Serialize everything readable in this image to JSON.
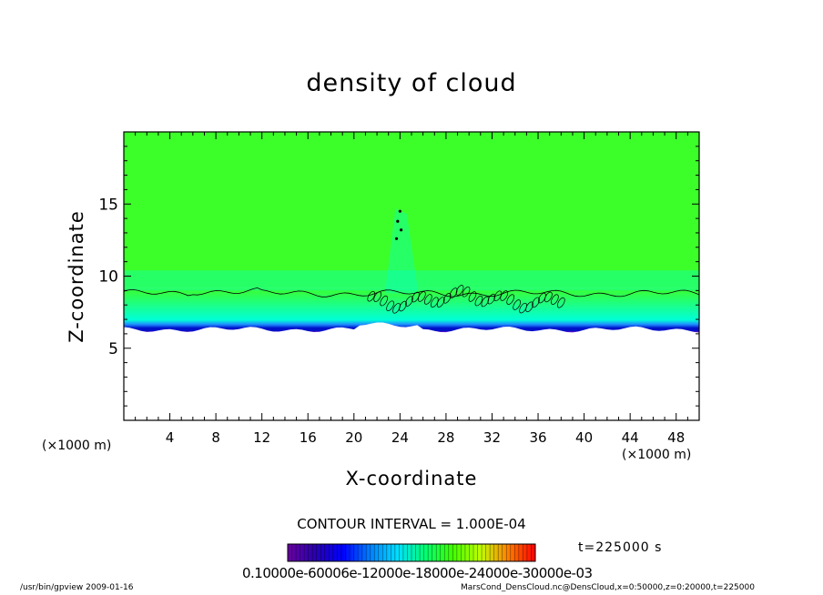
{
  "chart_data": {
    "type": "heatmap",
    "title": "density of cloud",
    "xlabel": "X-coordinate",
    "ylabel": "Z-coordinate",
    "x_unit": "(×1000 m)",
    "z_unit": "(×1000 m)",
    "xlim": [
      0,
      50
    ],
    "ylim": [
      0,
      20
    ],
    "xticks": [
      4,
      8,
      12,
      16,
      20,
      24,
      28,
      32,
      36,
      40,
      44,
      48
    ],
    "yticks": [
      5,
      10,
      15
    ],
    "contour_interval": "CONTOUR INTERVAL = 1.000E-04",
    "time": "t=225000 s",
    "colorbar_tick_text": "0.10000e-60006e-12000e-18000e-24000e-30000e-03",
    "colorbar": {
      "min": 0.0,
      "max": 0.0003,
      "palette": [
        "#6a00a0",
        "#2800b0",
        "#0000ff",
        "#0080ff",
        "#00e0ff",
        "#00ff70",
        "#40ff00",
        "#c0ff00",
        "#ff8000",
        "#ff0000"
      ]
    },
    "cloud_layer": {
      "base_z": 6.3,
      "top_contour_z": 8.8,
      "upper_field_to_z": 20,
      "convective_plume_x": 24,
      "convective_plume_top_z": 14.7,
      "colors": {
        "upper": "#3cff2a",
        "transition": "#00ffd8",
        "mid": "#1e8cff",
        "low": "#0010c8",
        "base": "#8a18c8"
      }
    }
  },
  "footer": {
    "left": "/usr/bin/gpview   2009-01-16",
    "right": "MarsCond_DensCloud.nc@DensCloud,x=0:50000,z=0:20000,t=225000"
  }
}
